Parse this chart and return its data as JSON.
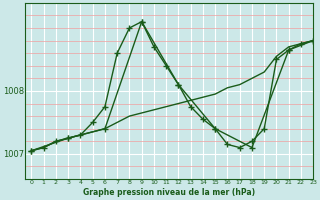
{
  "bg_color": "#cce8e8",
  "plot_bg_color": "#cce8e8",
  "line_color": "#1a5c1a",
  "title": "Graphe pression niveau de la mer (hPa)",
  "xlim": [
    -0.5,
    23
  ],
  "ylim": [
    1006.6,
    1009.4
  ],
  "yticks": [
    1007,
    1008
  ],
  "xticks": [
    0,
    1,
    2,
    3,
    4,
    5,
    6,
    7,
    8,
    9,
    10,
    11,
    12,
    13,
    14,
    15,
    16,
    17,
    18,
    19,
    20,
    21,
    22,
    23
  ],
  "series": [
    {
      "x": [
        0,
        1,
        2,
        3,
        4,
        5,
        6,
        7,
        8,
        9,
        10,
        11,
        12,
        13,
        14,
        15,
        16,
        17,
        18,
        19,
        20,
        21,
        22,
        23
      ],
      "y": [
        1007.05,
        1007.1,
        1007.2,
        1007.25,
        1007.3,
        1007.35,
        1007.4,
        1007.5,
        1007.6,
        1007.65,
        1007.7,
        1007.75,
        1007.8,
        1007.85,
        1007.9,
        1007.95,
        1008.05,
        1008.1,
        1008.2,
        1008.3,
        1008.55,
        1008.7,
        1008.75,
        1008.8
      ]
    },
    {
      "x": [
        0,
        1,
        2,
        3,
        4,
        5,
        6,
        7,
        8,
        9,
        10,
        11,
        12,
        13,
        14,
        15,
        16,
        17,
        18,
        19,
        20,
        21,
        22,
        23
      ],
      "y": [
        1007.05,
        1007.1,
        1007.2,
        1007.25,
        1007.3,
        1007.5,
        1007.75,
        1008.6,
        1009.0,
        1009.1,
        1008.7,
        1008.4,
        1008.1,
        1007.75,
        1007.55,
        1007.4,
        1007.15,
        1007.1,
        1007.2,
        1007.4,
        1008.5,
        1008.65,
        1008.75,
        1008.8
      ]
    },
    {
      "x": [
        0,
        3,
        6,
        9,
        12,
        15,
        18,
        21,
        23
      ],
      "y": [
        1007.05,
        1007.25,
        1007.4,
        1009.1,
        1008.1,
        1007.4,
        1007.1,
        1008.65,
        1008.8
      ]
    }
  ]
}
